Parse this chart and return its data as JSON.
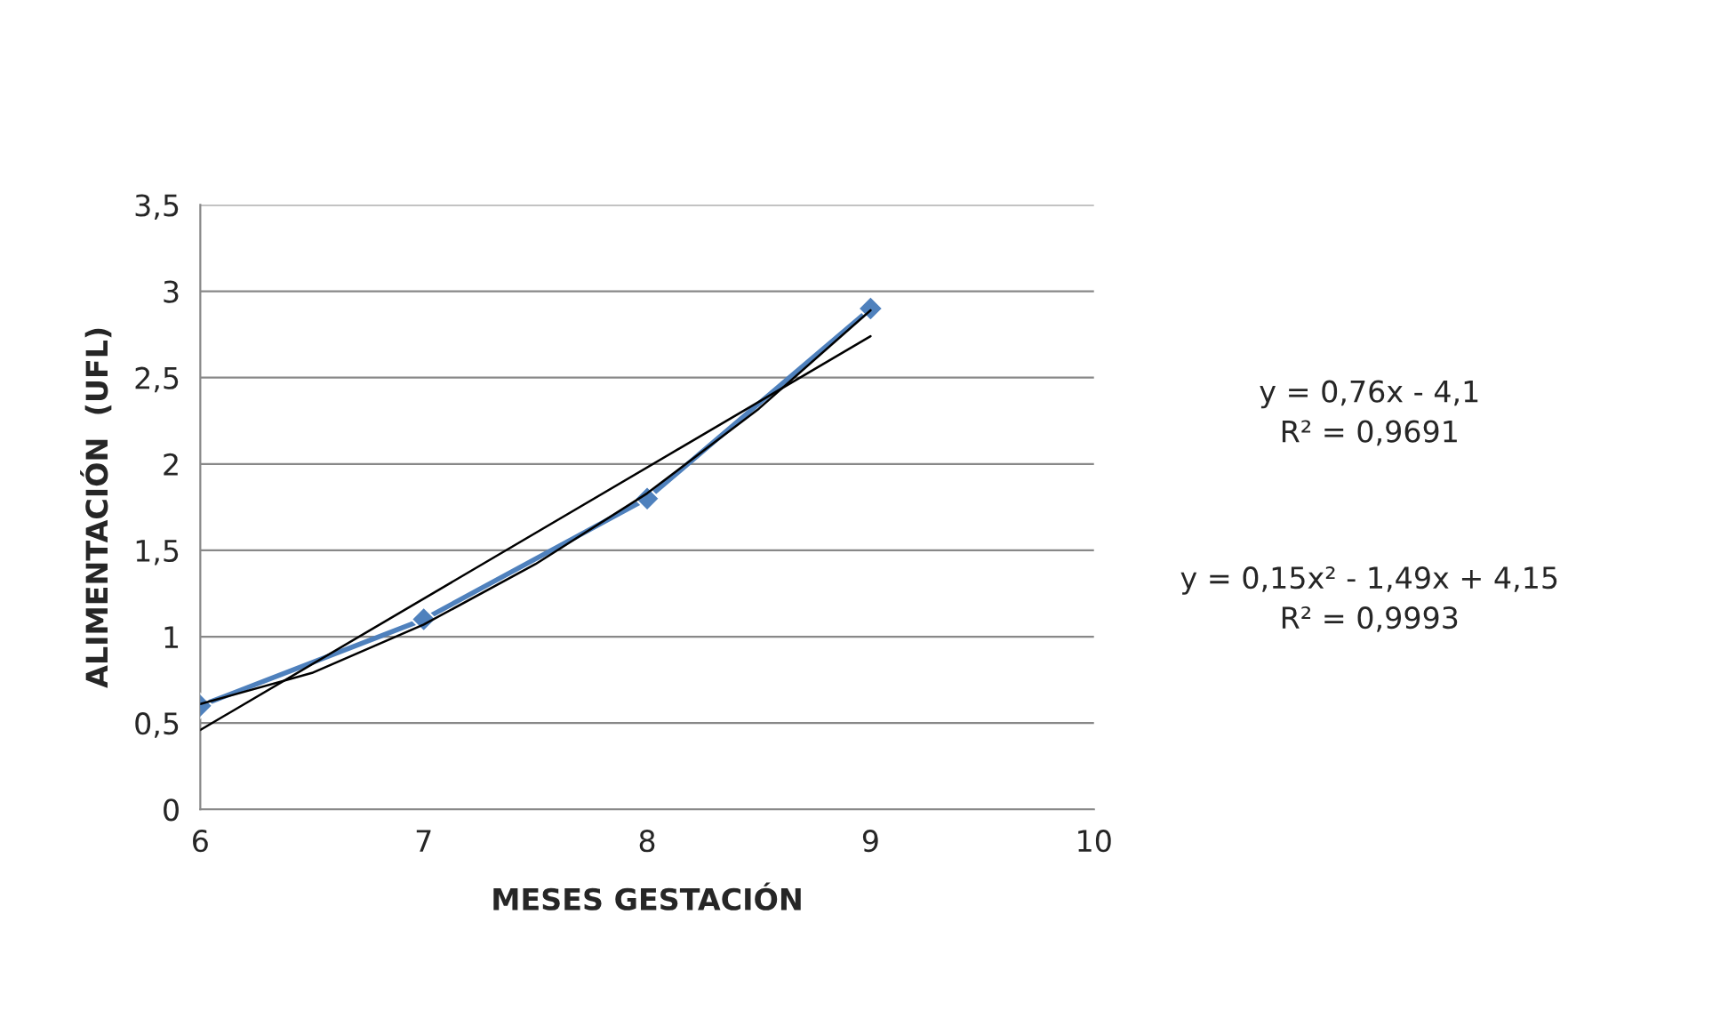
{
  "chart_data": {
    "type": "line",
    "xlabel": "MESES GESTACIÓN",
    "ylabel": "ALIMENTACIÓN  (UFL)",
    "xlim": [
      6,
      10
    ],
    "xticks": [
      6,
      7,
      8,
      9,
      10
    ],
    "ylim": [
      0,
      3.5
    ],
    "yticks": [
      0,
      {
        "value": 0.5,
        "label": "0,5"
      },
      1,
      {
        "value": 1.5,
        "label": "1,5"
      },
      2,
      {
        "value": 2.5,
        "label": "2,5"
      },
      3,
      {
        "value": 3.5,
        "label": "3,5"
      }
    ],
    "grid": "y",
    "series": [
      {
        "color": "#000000",
        "x": [
          6,
          9
        ],
        "values": [
          0.46,
          2.74
        ],
        "marker": "none"
      },
      {
        "color": "#000000",
        "x": [
          6,
          6.5,
          7,
          7.5,
          8,
          8.5,
          9
        ],
        "values": [
          0.61,
          0.79,
          1.07,
          1.42,
          1.83,
          2.32,
          2.89
        ],
        "marker": "none"
      },
      {
        "color": "#4f81bd",
        "x": [
          6,
          7,
          8,
          9
        ],
        "values": [
          0.6,
          1.1,
          1.8,
          2.9
        ],
        "marker": "diamond"
      }
    ],
    "annotations": [
      "y = 0,76x - 4,1\nR² = 0,9691",
      "y = 0,15x² - 1,49x + 4,15\nR² = 0,9993"
    ]
  }
}
